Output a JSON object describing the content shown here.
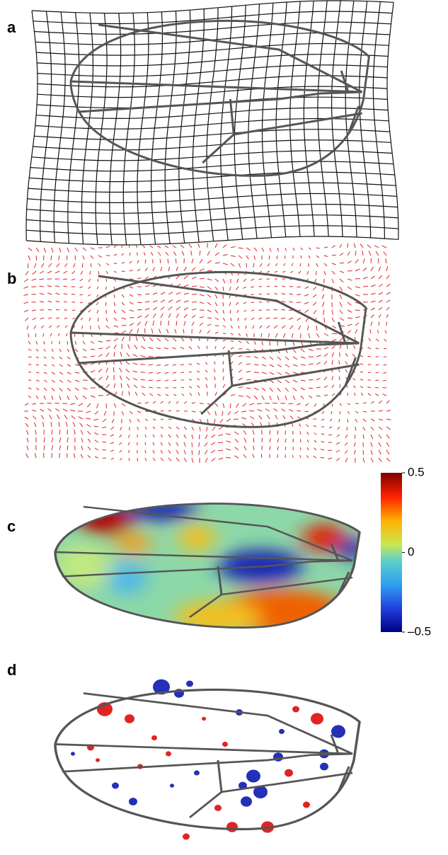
{
  "panels": [
    {
      "label": "a"
    },
    {
      "label": "b"
    },
    {
      "label": "c"
    },
    {
      "label": "d"
    }
  ],
  "colorbar": {
    "range": [
      -0.5,
      0.5
    ],
    "ticks": [
      0.5,
      0,
      {
        "value": -0.5,
        "label": "–0.5"
      }
    ]
  }
}
